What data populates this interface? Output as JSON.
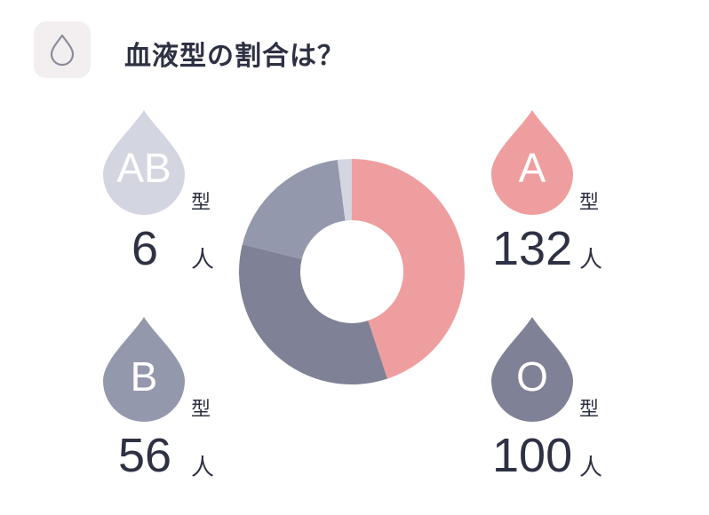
{
  "header": {
    "title": "血液型の割合は？",
    "icon": "blood-drop-icon"
  },
  "chart_data": {
    "type": "pie",
    "donut": true,
    "title": "血液型の割合は？",
    "categories": [
      "A",
      "O",
      "B",
      "AB"
    ],
    "values": [
      132,
      100,
      56,
      6
    ],
    "colors": [
      "#ef9e9f",
      "#7f8196",
      "#9498ad",
      "#d3d5e0"
    ],
    "unit": "人",
    "type_suffix": "型"
  },
  "groups": {
    "A": {
      "letter": "A",
      "suffix": "型",
      "count": "132",
      "unit": "人",
      "color": "#ef9e9f"
    },
    "O": {
      "letter": "O",
      "suffix": "型",
      "count": "100",
      "unit": "人",
      "color": "#7f8196"
    },
    "B": {
      "letter": "B",
      "suffix": "型",
      "count": "56",
      "unit": "人",
      "color": "#9498ad"
    },
    "AB": {
      "letter": "AB",
      "suffix": "型",
      "count": "6",
      "unit": "人",
      "color": "#d3d5e0"
    }
  }
}
